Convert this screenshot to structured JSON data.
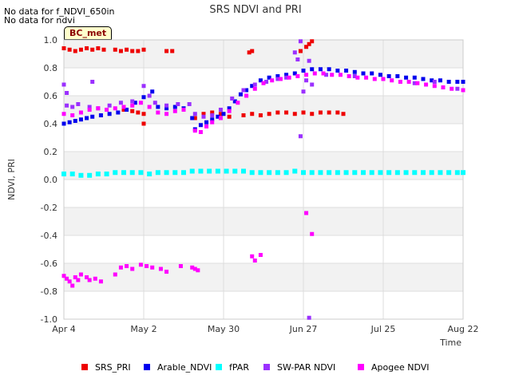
{
  "notes": [
    "No data for f_NDVI_650in",
    "No data for ndvi"
  ],
  "badge": "BC_met",
  "colors": {
    "SRS_PRI": "#ee0000",
    "Arable_NDVI": "#0000ee",
    "fPAR": "#00ffff",
    "SW-PAR NDVI": "#9b30ff",
    "Apogee NDVI": "#ff00ff",
    "band": "#f2f2f2",
    "grid": "#dddddd"
  },
  "chart_data": {
    "type": "scatter",
    "title": "SRS NDVI and PRI",
    "xlabel": "Time",
    "ylabel": "NDVI, PRI",
    "xlim": [
      "2024-04-04",
      "2024-08-22"
    ],
    "ylim": [
      -1.0,
      1.0
    ],
    "xticks": [
      {
        "date": "2024-04-04",
        "label": "Apr 4"
      },
      {
        "date": "2024-05-02",
        "label": "May 2"
      },
      {
        "date": "2024-05-30",
        "label": "May 30"
      },
      {
        "date": "2024-06-27",
        "label": "Jun 27"
      },
      {
        "date": "2024-07-25",
        "label": "Jul 25"
      },
      {
        "date": "2024-08-22",
        "label": "Aug 22"
      }
    ],
    "yticks": [
      1.0,
      0.8,
      0.6,
      0.4,
      0.2,
      0.0,
      -0.2,
      -0.4,
      -0.6,
      -0.8,
      -1.0
    ],
    "legend_position": "bottom",
    "series": [
      {
        "name": "SRS_PRI",
        "points": [
          [
            "2024-04-04",
            0.94
          ],
          [
            "2024-04-06",
            0.93
          ],
          [
            "2024-04-08",
            0.92
          ],
          [
            "2024-04-10",
            0.93
          ],
          [
            "2024-04-12",
            0.94
          ],
          [
            "2024-04-14",
            0.93
          ],
          [
            "2024-04-16",
            0.94
          ],
          [
            "2024-04-18",
            0.93
          ],
          [
            "2024-04-22",
            0.93
          ],
          [
            "2024-04-24",
            0.92
          ],
          [
            "2024-04-26",
            0.93
          ],
          [
            "2024-04-28",
            0.92
          ],
          [
            "2024-04-30",
            0.92
          ],
          [
            "2024-05-02",
            0.93
          ],
          [
            "2024-05-10",
            0.92
          ],
          [
            "2024-05-12",
            0.92
          ],
          [
            "2024-06-08",
            0.91
          ],
          [
            "2024-06-09",
            0.92
          ],
          [
            "2024-06-26",
            0.92
          ],
          [
            "2024-06-28",
            0.95
          ],
          [
            "2024-06-29",
            0.97
          ],
          [
            "2024-06-30",
            0.99
          ],
          [
            "2024-04-25",
            0.5
          ],
          [
            "2024-04-28",
            0.49
          ],
          [
            "2024-04-30",
            0.48
          ],
          [
            "2024-05-02",
            0.47
          ],
          [
            "2024-05-02",
            0.4
          ],
          [
            "2024-05-20",
            0.44
          ],
          [
            "2024-05-23",
            0.47
          ],
          [
            "2024-05-26",
            0.48
          ],
          [
            "2024-05-29",
            0.47
          ],
          [
            "2024-06-01",
            0.45
          ],
          [
            "2024-06-06",
            0.46
          ],
          [
            "2024-06-09",
            0.47
          ],
          [
            "2024-06-12",
            0.46
          ],
          [
            "2024-06-15",
            0.47
          ],
          [
            "2024-06-18",
            0.48
          ],
          [
            "2024-06-21",
            0.48
          ],
          [
            "2024-06-24",
            0.47
          ],
          [
            "2024-06-27",
            0.48
          ],
          [
            "2024-06-30",
            0.47
          ],
          [
            "2024-07-03",
            0.48
          ],
          [
            "2024-07-06",
            0.48
          ],
          [
            "2024-07-09",
            0.48
          ],
          [
            "2024-07-11",
            0.47
          ]
        ]
      },
      {
        "name": "Arable_NDVI",
        "points": [
          [
            "2024-04-04",
            0.4
          ],
          [
            "2024-04-06",
            0.41
          ],
          [
            "2024-04-08",
            0.42
          ],
          [
            "2024-04-10",
            0.43
          ],
          [
            "2024-04-12",
            0.44
          ],
          [
            "2024-04-14",
            0.45
          ],
          [
            "2024-04-17",
            0.46
          ],
          [
            "2024-04-20",
            0.47
          ],
          [
            "2024-04-23",
            0.48
          ],
          [
            "2024-04-26",
            0.5
          ],
          [
            "2024-04-29",
            0.55
          ],
          [
            "2024-05-02",
            0.59
          ],
          [
            "2024-05-05",
            0.63
          ],
          [
            "2024-05-07",
            0.52
          ],
          [
            "2024-05-10",
            0.51
          ],
          [
            "2024-05-13",
            0.52
          ],
          [
            "2024-05-16",
            0.51
          ],
          [
            "2024-05-19",
            0.44
          ],
          [
            "2024-05-20",
            0.36
          ],
          [
            "2024-05-22",
            0.39
          ],
          [
            "2024-05-24",
            0.41
          ],
          [
            "2024-05-26",
            0.43
          ],
          [
            "2024-05-28",
            0.45
          ],
          [
            "2024-05-30",
            0.47
          ],
          [
            "2024-06-01",
            0.51
          ],
          [
            "2024-06-03",
            0.56
          ],
          [
            "2024-06-05",
            0.61
          ],
          [
            "2024-06-07",
            0.64
          ],
          [
            "2024-06-09",
            0.67
          ],
          [
            "2024-06-12",
            0.71
          ],
          [
            "2024-06-15",
            0.73
          ],
          [
            "2024-06-18",
            0.74
          ],
          [
            "2024-06-21",
            0.75
          ],
          [
            "2024-06-24",
            0.76
          ],
          [
            "2024-06-27",
            0.78
          ],
          [
            "2024-06-30",
            0.79
          ],
          [
            "2024-07-03",
            0.79
          ],
          [
            "2024-07-06",
            0.79
          ],
          [
            "2024-07-09",
            0.78
          ],
          [
            "2024-07-12",
            0.78
          ],
          [
            "2024-07-15",
            0.77
          ],
          [
            "2024-07-18",
            0.76
          ],
          [
            "2024-07-21",
            0.76
          ],
          [
            "2024-07-24",
            0.75
          ],
          [
            "2024-07-27",
            0.74
          ],
          [
            "2024-07-30",
            0.74
          ],
          [
            "2024-08-02",
            0.73
          ],
          [
            "2024-08-05",
            0.73
          ],
          [
            "2024-08-08",
            0.72
          ],
          [
            "2024-08-11",
            0.71
          ],
          [
            "2024-08-14",
            0.71
          ],
          [
            "2024-08-17",
            0.7
          ],
          [
            "2024-08-20",
            0.7
          ],
          [
            "2024-08-22",
            0.7
          ]
        ]
      },
      {
        "name": "fPAR",
        "points": [
          [
            "2024-04-04",
            0.04
          ],
          [
            "2024-04-07",
            0.04
          ],
          [
            "2024-04-10",
            0.03
          ],
          [
            "2024-04-13",
            0.03
          ],
          [
            "2024-04-16",
            0.04
          ],
          [
            "2024-04-19",
            0.04
          ],
          [
            "2024-04-22",
            0.05
          ],
          [
            "2024-04-25",
            0.05
          ],
          [
            "2024-04-28",
            0.05
          ],
          [
            "2024-05-01",
            0.05
          ],
          [
            "2024-05-04",
            0.04
          ],
          [
            "2024-05-07",
            0.05
          ],
          [
            "2024-05-10",
            0.05
          ],
          [
            "2024-05-13",
            0.05
          ],
          [
            "2024-05-16",
            0.05
          ],
          [
            "2024-05-19",
            0.06
          ],
          [
            "2024-05-22",
            0.06
          ],
          [
            "2024-05-25",
            0.06
          ],
          [
            "2024-05-28",
            0.06
          ],
          [
            "2024-05-31",
            0.06
          ],
          [
            "2024-06-03",
            0.06
          ],
          [
            "2024-06-06",
            0.06
          ],
          [
            "2024-06-09",
            0.05
          ],
          [
            "2024-06-12",
            0.05
          ],
          [
            "2024-06-15",
            0.05
          ],
          [
            "2024-06-18",
            0.05
          ],
          [
            "2024-06-21",
            0.05
          ],
          [
            "2024-06-24",
            0.06
          ],
          [
            "2024-06-27",
            0.05
          ],
          [
            "2024-06-30",
            0.05
          ],
          [
            "2024-07-03",
            0.05
          ],
          [
            "2024-07-06",
            0.05
          ],
          [
            "2024-07-09",
            0.05
          ],
          [
            "2024-07-12",
            0.05
          ],
          [
            "2024-07-15",
            0.05
          ],
          [
            "2024-07-18",
            0.05
          ],
          [
            "2024-07-21",
            0.05
          ],
          [
            "2024-07-24",
            0.05
          ],
          [
            "2024-07-27",
            0.05
          ],
          [
            "2024-07-30",
            0.05
          ],
          [
            "2024-08-02",
            0.05
          ],
          [
            "2024-08-05",
            0.05
          ],
          [
            "2024-08-08",
            0.05
          ],
          [
            "2024-08-11",
            0.05
          ],
          [
            "2024-08-14",
            0.05
          ],
          [
            "2024-08-17",
            0.05
          ],
          [
            "2024-08-20",
            0.05
          ],
          [
            "2024-08-22",
            0.05
          ]
        ]
      },
      {
        "name": "SW-PAR NDVI",
        "points": [
          [
            "2024-04-04",
            0.68
          ],
          [
            "2024-04-05",
            0.62
          ],
          [
            "2024-04-05",
            0.53
          ],
          [
            "2024-04-07",
            0.52
          ],
          [
            "2024-04-09",
            0.54
          ],
          [
            "2024-04-13",
            0.52
          ],
          [
            "2024-04-16",
            0.51
          ],
          [
            "2024-04-20",
            0.53
          ],
          [
            "2024-04-24",
            0.55
          ],
          [
            "2024-04-28",
            0.56
          ],
          [
            "2024-05-02",
            0.67
          ],
          [
            "2024-05-04",
            0.6
          ],
          [
            "2024-05-06",
            0.55
          ],
          [
            "2024-05-10",
            0.53
          ],
          [
            "2024-05-14",
            0.54
          ],
          [
            "2024-05-18",
            0.54
          ],
          [
            "2024-05-20",
            0.47
          ],
          [
            "2024-05-23",
            0.45
          ],
          [
            "2024-05-26",
            0.46
          ],
          [
            "2024-05-29",
            0.5
          ],
          [
            "2024-06-02",
            0.58
          ],
          [
            "2024-06-06",
            0.64
          ],
          [
            "2024-06-10",
            0.68
          ],
          [
            "2024-06-14",
            0.7
          ],
          [
            "2024-06-18",
            0.72
          ],
          [
            "2024-06-21",
            0.73
          ],
          [
            "2024-06-24",
            0.91
          ],
          [
            "2024-06-25",
            0.86
          ],
          [
            "2024-06-26",
            0.99
          ],
          [
            "2024-06-27",
            0.63
          ],
          [
            "2024-06-28",
            0.71
          ],
          [
            "2024-06-29",
            0.85
          ],
          [
            "2024-06-30",
            0.68
          ],
          [
            "2024-06-26",
            0.31
          ],
          [
            "2024-06-29",
            -0.99
          ],
          [
            "2024-07-05",
            0.75
          ],
          [
            "2024-07-15",
            0.74
          ],
          [
            "2024-07-25",
            0.72
          ],
          [
            "2024-08-05",
            0.69
          ],
          [
            "2024-08-12",
            0.7
          ],
          [
            "2024-08-20",
            0.65
          ],
          [
            "2024-04-14",
            0.7
          ]
        ]
      },
      {
        "name": "Apogee NDVI",
        "points": [
          [
            "2024-04-04",
            -0.69
          ],
          [
            "2024-04-05",
            -0.71
          ],
          [
            "2024-04-06",
            -0.73
          ],
          [
            "2024-04-07",
            -0.76
          ],
          [
            "2024-04-08",
            -0.7
          ],
          [
            "2024-04-09",
            -0.72
          ],
          [
            "2024-04-10",
            -0.68
          ],
          [
            "2024-04-12",
            -0.7
          ],
          [
            "2024-04-13",
            -0.72
          ],
          [
            "2024-04-15",
            -0.71
          ],
          [
            "2024-04-17",
            -0.73
          ],
          [
            "2024-04-22",
            -0.68
          ],
          [
            "2024-04-24",
            -0.63
          ],
          [
            "2024-04-26",
            -0.62
          ],
          [
            "2024-04-28",
            -0.64
          ],
          [
            "2024-05-01",
            -0.61
          ],
          [
            "2024-05-03",
            -0.62
          ],
          [
            "2024-05-05",
            -0.63
          ],
          [
            "2024-05-08",
            -0.64
          ],
          [
            "2024-05-10",
            -0.66
          ],
          [
            "2024-05-15",
            -0.62
          ],
          [
            "2024-05-19",
            -0.63
          ],
          [
            "2024-05-20",
            -0.64
          ],
          [
            "2024-05-21",
            -0.65
          ],
          [
            "2024-06-09",
            -0.55
          ],
          [
            "2024-06-10",
            -0.58
          ],
          [
            "2024-06-12",
            -0.54
          ],
          [
            "2024-06-28",
            -0.24
          ],
          [
            "2024-06-30",
            -0.39
          ],
          [
            "2024-04-04",
            0.47
          ],
          [
            "2024-04-07",
            0.46
          ],
          [
            "2024-04-10",
            0.48
          ],
          [
            "2024-04-13",
            0.5
          ],
          [
            "2024-04-16",
            0.51
          ],
          [
            "2024-04-19",
            0.5
          ],
          [
            "2024-04-22",
            0.51
          ],
          [
            "2024-04-25",
            0.52
          ],
          [
            "2024-04-28",
            0.53
          ],
          [
            "2024-05-01",
            0.55
          ],
          [
            "2024-05-04",
            0.52
          ],
          [
            "2024-05-07",
            0.48
          ],
          [
            "2024-05-10",
            0.47
          ],
          [
            "2024-05-13",
            0.49
          ],
          [
            "2024-05-16",
            0.5
          ],
          [
            "2024-05-20",
            0.35
          ],
          [
            "2024-05-22",
            0.34
          ],
          [
            "2024-05-24",
            0.38
          ],
          [
            "2024-05-26",
            0.41
          ],
          [
            "2024-05-29",
            0.44
          ],
          [
            "2024-06-01",
            0.49
          ],
          [
            "2024-06-04",
            0.55
          ],
          [
            "2024-06-07",
            0.6
          ],
          [
            "2024-06-10",
            0.65
          ],
          [
            "2024-06-13",
            0.69
          ],
          [
            "2024-06-16",
            0.71
          ],
          [
            "2024-06-19",
            0.72
          ],
          [
            "2024-06-22",
            0.73
          ],
          [
            "2024-06-25",
            0.74
          ],
          [
            "2024-06-28",
            0.75
          ],
          [
            "2024-07-01",
            0.76
          ],
          [
            "2024-07-04",
            0.76
          ],
          [
            "2024-07-07",
            0.75
          ],
          [
            "2024-07-10",
            0.75
          ],
          [
            "2024-07-13",
            0.74
          ],
          [
            "2024-07-16",
            0.73
          ],
          [
            "2024-07-19",
            0.73
          ],
          [
            "2024-07-22",
            0.72
          ],
          [
            "2024-07-25",
            0.72
          ],
          [
            "2024-07-28",
            0.71
          ],
          [
            "2024-07-31",
            0.7
          ],
          [
            "2024-08-03",
            0.7
          ],
          [
            "2024-08-06",
            0.69
          ],
          [
            "2024-08-09",
            0.68
          ],
          [
            "2024-08-12",
            0.67
          ],
          [
            "2024-08-15",
            0.66
          ],
          [
            "2024-08-18",
            0.65
          ],
          [
            "2024-08-22",
            0.64
          ]
        ]
      }
    ]
  }
}
